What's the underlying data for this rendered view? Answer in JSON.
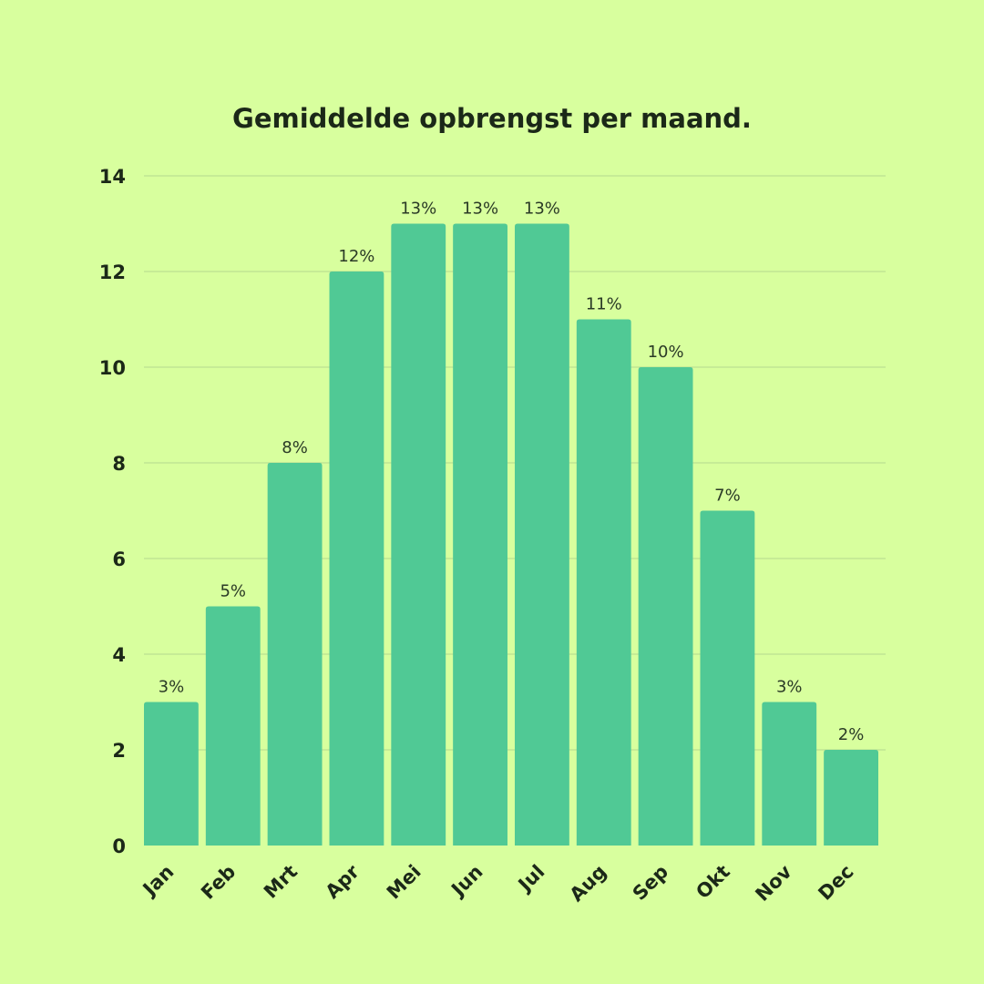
{
  "chart_data": {
    "type": "bar",
    "title": "Gemiddelde opbrengst per maand.",
    "xlabel": "",
    "ylabel": "",
    "categories": [
      "Jan",
      "Feb",
      "Mrt",
      "Apr",
      "Mei",
      "Jun",
      "Jul",
      "Aug",
      "Sep",
      "Okt",
      "Nov",
      "Dec"
    ],
    "values": [
      3,
      5,
      8,
      12,
      13,
      13,
      13,
      11,
      10,
      7,
      3,
      2
    ],
    "data_labels": [
      "3%",
      "5%",
      "8%",
      "12%",
      "13%",
      "13%",
      "13%",
      "11%",
      "10%",
      "7%",
      "3%",
      "2%"
    ],
    "ylim": [
      0,
      14
    ],
    "yticks": [
      0,
      2,
      4,
      6,
      8,
      10,
      12,
      14
    ],
    "grid": true,
    "legend": "none",
    "colors": {
      "background": "#d8ff9e",
      "bar": "#50c995",
      "grid": "#b3d98e",
      "text": "#1b2818"
    }
  }
}
